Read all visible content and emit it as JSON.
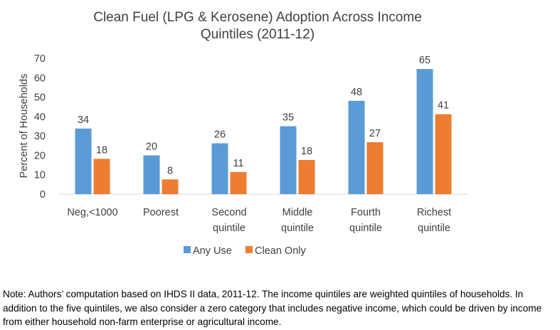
{
  "chart_data": {
    "type": "bar",
    "title": "Clean Fuel (LPG & Kerosene) Adoption Across Income Quintiles (2011-12)",
    "title_lines": [
      "Clean Fuel (LPG & Kerosene) Adoption Across Income",
      "Quintiles (2011-12)"
    ],
    "xlabel": "",
    "ylabel": "Percent of Households",
    "ylim": [
      0,
      70
    ],
    "yticks": [
      0,
      10,
      20,
      30,
      40,
      50,
      60,
      70
    ],
    "grid": false,
    "legend_position": "bottom",
    "categories": [
      [
        "Neg,<1000"
      ],
      [
        "Poorest"
      ],
      [
        "Second",
        "quintile"
      ],
      [
        "Middle",
        "quintile"
      ],
      [
        "Fourth",
        "quintile"
      ],
      [
        "Richest",
        "quintile"
      ]
    ],
    "series": [
      {
        "name": "Any Use",
        "color": "#5B9BD5",
        "values": [
          34,
          20,
          26,
          35,
          48,
          65
        ],
        "heights": [
          33.8,
          20.0,
          26.2,
          35.0,
          48.1,
          64.5
        ]
      },
      {
        "name": "Clean Only",
        "color": "#ED7D31",
        "values": [
          18,
          8,
          11,
          18,
          27,
          41
        ],
        "heights": [
          18.2,
          7.6,
          11.4,
          17.6,
          26.8,
          41.2
        ]
      }
    ]
  },
  "note": "Note: Authors’ computation based on IHDS II data, 2011-12. The income quintiles are weighted quintiles of households. In addition to the five quintiles, we also consider a zero category that includes negative income, which could be driven by income from either household non-farm enterprise or agricultural income."
}
